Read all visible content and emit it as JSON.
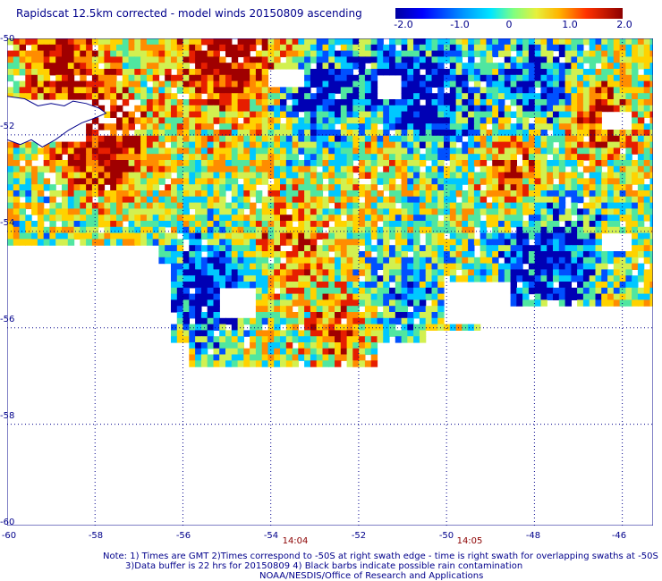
{
  "title": "Rapidscat 12.5km corrected - model winds 20150809 ascending",
  "colorbar": {
    "ticks": [
      "-2.0",
      "-1.0",
      "0",
      "1.0",
      "2.0"
    ],
    "range": [
      -2.0,
      2.0
    ]
  },
  "map": {
    "lon_range": [
      -60,
      -45.3
    ],
    "lat_range": [
      -50,
      -60.1
    ],
    "lon_ticks": [
      "-60",
      "-58",
      "-56",
      "-54",
      "-52",
      "-50",
      "-48",
      "-46"
    ],
    "lat_ticks": [
      "-50",
      "-52",
      "-54",
      "-56",
      "-58",
      "-60"
    ],
    "time_labels": [
      "14:04",
      "14:05"
    ],
    "time_label_lons": [
      -53.3,
      -49.3
    ],
    "coast_color": "#00008b",
    "grid": true,
    "colormap": [
      "#0000b4",
      "#0050ff",
      "#00c8ff",
      "#50e6a0",
      "#d2f050",
      "#ffd200",
      "#ff8c00",
      "#e61e00",
      "#a00000"
    ],
    "coverage_note": "Swath of wind difference values (-2.0 to 2.0) covering lat -50 to -56.8, lon -60 to -45.3"
  },
  "notes": {
    "line1": "Note: 1) Times are GMT 2)Times correspond to -50S at right swath edge - time is right swath for overlapping swaths at -50S",
    "line2": "3)Data buffer is 22 hrs for 20150809 4) Black barbs indicate possible rain contamination",
    "line3": "NOAA/NESDIS/Office of Research and Applications"
  }
}
